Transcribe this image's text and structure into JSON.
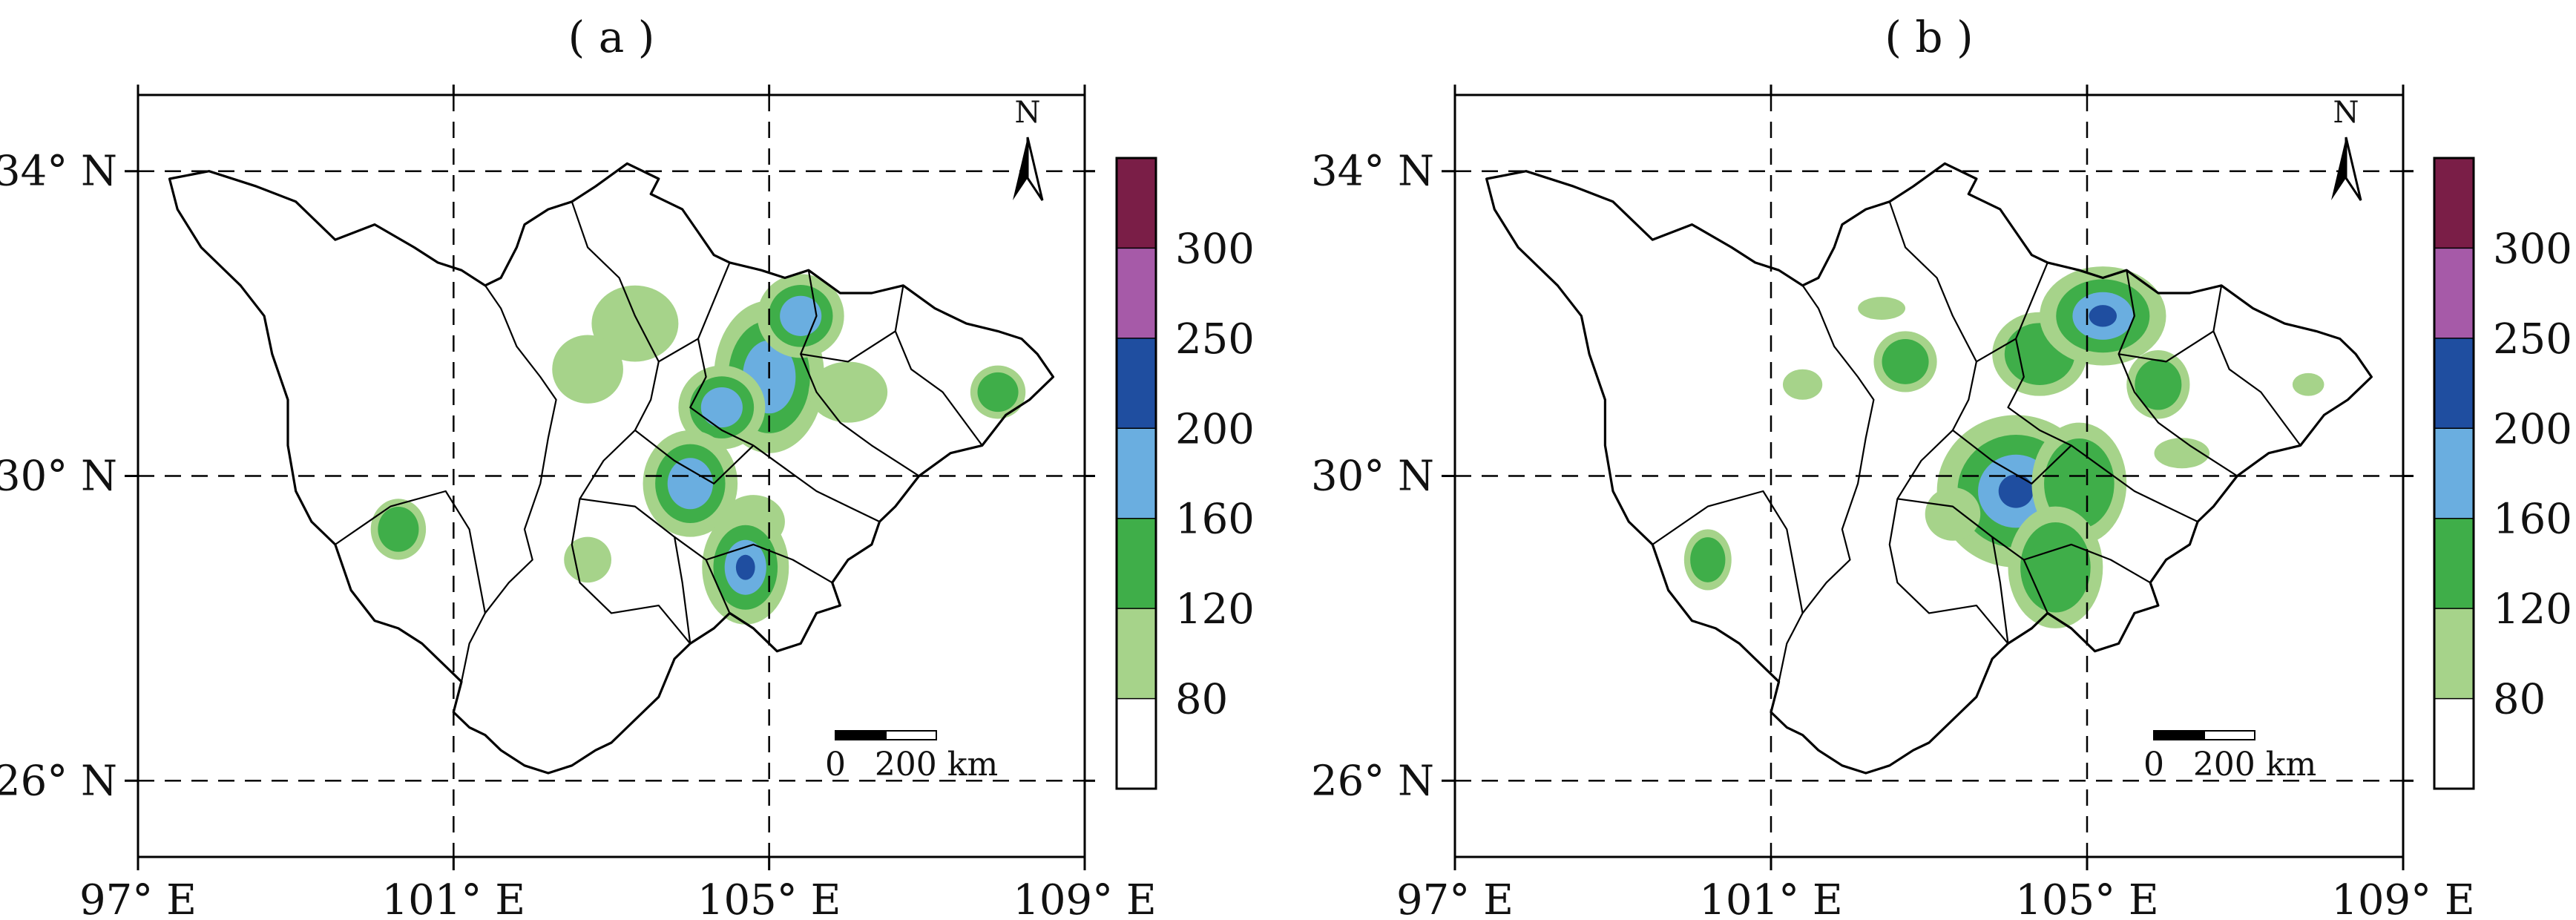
{
  "panels": [
    {
      "label": "( a )",
      "contours": [
        {
          "lon": 103.3,
          "lat": 32.0,
          "rx": 0.55,
          "ry": 0.5,
          "levels": [
            0
          ]
        },
        {
          "lon": 102.7,
          "lat": 31.4,
          "rx": 0.45,
          "ry": 0.45,
          "levels": [
            0
          ]
        },
        {
          "lon": 105.0,
          "lat": 31.3,
          "rx": 0.7,
          "ry": 1.0,
          "levels": [
            0,
            1,
            2
          ]
        },
        {
          "lon": 105.4,
          "lat": 32.1,
          "rx": 0.55,
          "ry": 0.55,
          "levels": [
            0,
            1,
            2
          ]
        },
        {
          "lon": 104.4,
          "lat": 30.9,
          "rx": 0.55,
          "ry": 0.55,
          "levels": [
            0,
            1,
            2
          ]
        },
        {
          "lon": 106.0,
          "lat": 31.1,
          "rx": 0.5,
          "ry": 0.4,
          "levels": [
            0
          ]
        },
        {
          "lon": 107.9,
          "lat": 31.1,
          "rx": 0.35,
          "ry": 0.35,
          "levels": [
            0,
            1
          ]
        },
        {
          "lon": 104.0,
          "lat": 29.9,
          "rx": 0.6,
          "ry": 0.7,
          "levels": [
            0,
            1,
            2
          ]
        },
        {
          "lon": 104.8,
          "lat": 29.4,
          "rx": 0.4,
          "ry": 0.35,
          "levels": [
            0
          ]
        },
        {
          "lon": 104.7,
          "lat": 28.8,
          "rx": 0.55,
          "ry": 0.75,
          "levels": [
            0,
            1,
            2,
            3
          ]
        },
        {
          "lon": 100.3,
          "lat": 29.3,
          "rx": 0.35,
          "ry": 0.4,
          "levels": [
            0,
            1
          ]
        },
        {
          "lon": 102.7,
          "lat": 28.9,
          "rx": 0.3,
          "ry": 0.3,
          "levels": [
            0
          ]
        }
      ]
    },
    {
      "label": "( b )",
      "contours": [
        {
          "lon": 104.4,
          "lat": 31.6,
          "rx": 0.6,
          "ry": 0.55,
          "levels": [
            0,
            1
          ]
        },
        {
          "lon": 105.2,
          "lat": 32.1,
          "rx": 0.8,
          "ry": 0.65,
          "levels": [
            0,
            1,
            2,
            3
          ]
        },
        {
          "lon": 105.9,
          "lat": 31.2,
          "rx": 0.4,
          "ry": 0.45,
          "levels": [
            0,
            1
          ]
        },
        {
          "lon": 102.7,
          "lat": 31.5,
          "rx": 0.4,
          "ry": 0.4,
          "levels": [
            0,
            1
          ]
        },
        {
          "lon": 101.4,
          "lat": 31.2,
          "rx": 0.25,
          "ry": 0.2,
          "levels": [
            0
          ]
        },
        {
          "lon": 102.4,
          "lat": 32.2,
          "rx": 0.3,
          "ry": 0.15,
          "levels": [
            0
          ]
        },
        {
          "lon": 107.8,
          "lat": 31.2,
          "rx": 0.2,
          "ry": 0.15,
          "levels": [
            0
          ]
        },
        {
          "lon": 104.1,
          "lat": 29.8,
          "rx": 1.0,
          "ry": 1.0,
          "levels": [
            0,
            1,
            2,
            3
          ]
        },
        {
          "lon": 104.9,
          "lat": 29.9,
          "rx": 0.6,
          "ry": 0.8,
          "levels": [
            0,
            1
          ]
        },
        {
          "lon": 104.6,
          "lat": 28.8,
          "rx": 0.6,
          "ry": 0.8,
          "levels": [
            0,
            1
          ]
        },
        {
          "lon": 103.3,
          "lat": 29.5,
          "rx": 0.35,
          "ry": 0.35,
          "levels": [
            0
          ]
        },
        {
          "lon": 100.2,
          "lat": 28.9,
          "rx": 0.3,
          "ry": 0.4,
          "levels": [
            0,
            1
          ]
        },
        {
          "lon": 106.2,
          "lat": 30.3,
          "rx": 0.35,
          "ry": 0.2,
          "levels": [
            0
          ]
        }
      ]
    }
  ],
  "x_ticks": [
    "97° E",
    "101° E",
    "105° E",
    "109° E"
  ],
  "x_tick_values": [
    97,
    101,
    105,
    109
  ],
  "y_ticks": [
    "34° N",
    "30° N",
    "26° N"
  ],
  "y_tick_values": [
    34,
    30,
    26
  ],
  "map_extent": {
    "lon": [
      97,
      109
    ],
    "lat": [
      25,
      35
    ]
  },
  "legend": {
    "levels": [
      "80",
      "120",
      "160",
      "200",
      "250",
      "300"
    ],
    "colors": [
      "#ffffff",
      "#a6d38a",
      "#3fae49",
      "#6aaee0",
      "#1f4ea0",
      "#a65aa8",
      "#7a1e47"
    ]
  },
  "north_label": "N",
  "scale_bar": {
    "start": "0",
    "end": "200 km"
  },
  "map_colors": {
    "border": "#000000",
    "grid": "#000000"
  }
}
